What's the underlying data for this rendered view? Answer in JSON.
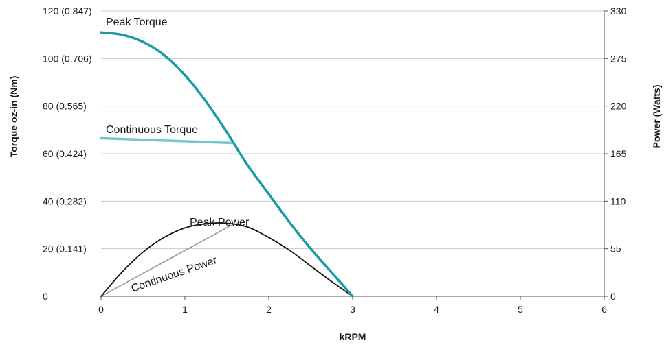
{
  "chart_data": {
    "type": "line",
    "title": "",
    "xlabel": "kRPM",
    "ylabel_left": "Torque oz-in (Nm)",
    "ylabel_right": "Power (Watts)",
    "xlim": [
      0,
      6
    ],
    "ylim_left": [
      0,
      120
    ],
    "ylim_right": [
      0,
      330
    ],
    "x_ticks": [
      "0",
      "1",
      "2",
      "3",
      "4",
      "5",
      "6"
    ],
    "y_left_ticks": [
      "0",
      "20 (0.141)",
      "40 (0.282)",
      "60 (0.424)",
      "80 (0.565)",
      "100 (0.706)",
      "120 (0.847)"
    ],
    "y_right_ticks": [
      "0",
      "55",
      "110",
      "165",
      "220",
      "275",
      "330"
    ],
    "grid": "horizontal",
    "colors": {
      "peak_torque": "#1a9aa4",
      "continuous_torque": "#72c6cc",
      "peak_power": "#111111",
      "continuous_power": "#9e9e9e",
      "grid": "#c8c8c8",
      "axis": "#555555"
    },
    "series": [
      {
        "name": "Peak Torque",
        "axis": "left",
        "x": [
          0,
          0.25,
          0.5,
          0.75,
          1.0,
          1.25,
          1.5,
          1.75,
          2.0,
          2.25,
          2.5,
          2.75,
          3.0
        ],
        "y": [
          111,
          110,
          107,
          101.5,
          93,
          82,
          69,
          55,
          43,
          31,
          20,
          10,
          0
        ]
      },
      {
        "name": "Continuous Torque",
        "axis": "left",
        "x": [
          0,
          1.55
        ],
        "y": [
          66.5,
          64.5
        ]
      },
      {
        "name": "Peak Power",
        "axis": "right",
        "x": [
          0,
          0.25,
          0.5,
          0.75,
          1.0,
          1.25,
          1.5,
          1.75,
          2.0,
          2.25,
          2.5,
          2.75,
          3.0
        ],
        "y": [
          0,
          28,
          51,
          68,
          79,
          84,
          84.5,
          80,
          68,
          53,
          35,
          17,
          0
        ]
      },
      {
        "name": "Continuous Power",
        "axis": "right",
        "x": [
          0,
          1.55
        ],
        "y": [
          0,
          82
        ]
      }
    ],
    "annotations": [
      {
        "text": "Peak Torque"
      },
      {
        "text": "Continuous Torque"
      },
      {
        "text": "Peak Power"
      },
      {
        "text": "Continuous Power"
      }
    ]
  }
}
